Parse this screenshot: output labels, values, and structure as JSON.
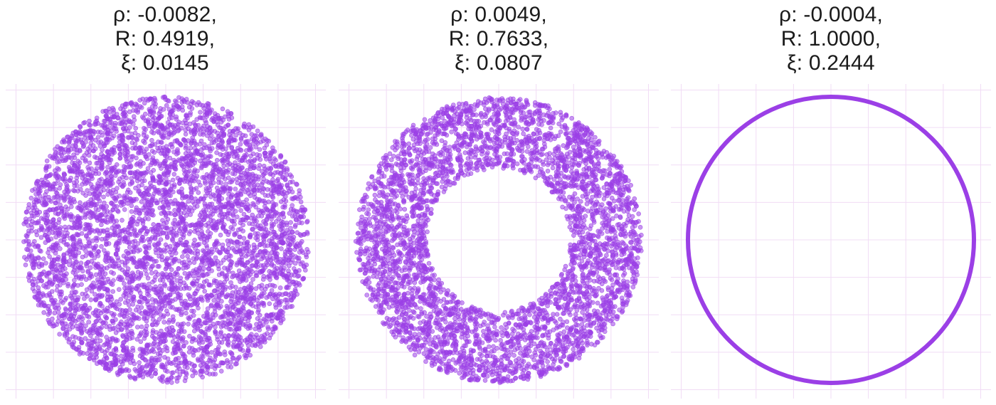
{
  "colors": {
    "point": "#9b3fe6",
    "ring_line": "#9b3fe6",
    "grid": "#f1dcf5",
    "background": "#ffffff"
  },
  "chart_data": [
    {
      "type": "scatter",
      "title_lines": [
        "ρ: -0.0082,",
        "R: 0.4919,",
        "ξ: 0.0145"
      ],
      "shape": "disk",
      "radius": 1.0,
      "inner_radius": 0.0,
      "xlim": [
        -1.05,
        1.05
      ],
      "ylim": [
        -1.05,
        1.05
      ],
      "grid": true,
      "point_count": 5000
    },
    {
      "type": "scatter",
      "title_lines": [
        "ρ: 0.0049,",
        "R: 0.7633,",
        "ξ: 0.0807"
      ],
      "shape": "annulus",
      "radius": 1.0,
      "inner_radius": 0.5,
      "xlim": [
        -1.05,
        1.05
      ],
      "ylim": [
        -1.05,
        1.05
      ],
      "grid": true,
      "point_count": 4200
    },
    {
      "type": "scatter",
      "title_lines": [
        "ρ: -0.0004,",
        "R: 1.0000,",
        "ξ: 0.2444"
      ],
      "shape": "circle",
      "radius": 1.0,
      "inner_radius": 1.0,
      "xlim": [
        -1.05,
        1.05
      ],
      "ylim": [
        -1.05,
        1.05
      ],
      "grid": true,
      "point_count": 0
    }
  ]
}
